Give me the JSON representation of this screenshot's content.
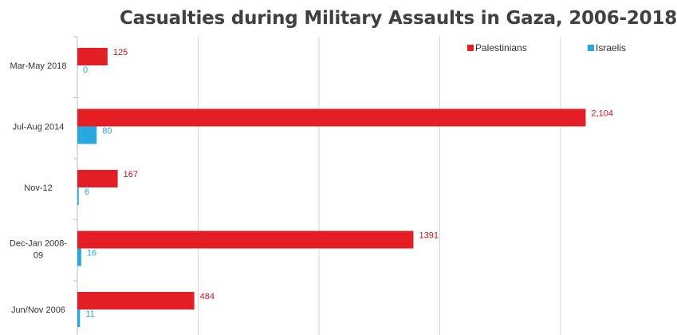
{
  "chart_data": {
    "type": "bar",
    "orientation": "horizontal",
    "title": "Casualties during Military Assaults in Gaza, 2006-2018",
    "categories": [
      "Mar-May 2018",
      "Jul-Aug 2014",
      "Nov-12",
      "Dec-Jan 2008-09",
      "Jun/Nov 2006"
    ],
    "series": [
      {
        "name": "Palestinians",
        "color": "#e31e24",
        "values": [
          125,
          2104,
          167,
          1391,
          484
        ],
        "data_labels": [
          "125",
          "2,104",
          "167",
          "1391",
          "484"
        ]
      },
      {
        "name": "Israelis",
        "color": "#29a8df",
        "values": [
          0,
          80,
          6,
          16,
          11
        ],
        "data_labels": [
          "0",
          "80",
          "6",
          "16",
          "11"
        ]
      }
    ],
    "xlim": [
      0,
      2500
    ],
    "grid": true,
    "legend_position": "top-right",
    "xlabel": "",
    "ylabel": ""
  }
}
